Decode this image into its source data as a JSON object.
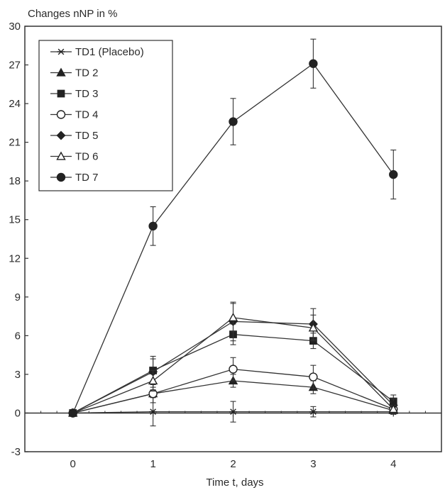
{
  "chart_data": {
    "type": "line",
    "ylabel": "Changes nNP in %",
    "xlabel": "Time t, days",
    "x": [
      0,
      1,
      2,
      3,
      4
    ],
    "xlim": [
      -0.6,
      4.6
    ],
    "ylim": [
      -3,
      30
    ],
    "xticks": [
      0,
      1,
      2,
      3,
      4
    ],
    "yticks": [
      -3,
      0,
      3,
      6,
      9,
      12,
      15,
      18,
      21,
      24,
      27,
      30
    ],
    "grid": false,
    "legend_position": "top-left",
    "series": [
      {
        "name": "TD1 (Placebo)",
        "marker": "asterisk",
        "values": [
          0,
          0.1,
          0.1,
          0.1,
          0.1
        ],
        "errors": [
          0,
          1.1,
          0.8,
          0.4,
          0.2
        ]
      },
      {
        "name": "TD 2",
        "marker": "triangle-filled",
        "values": [
          0,
          1.5,
          2.5,
          2.0,
          0.2
        ],
        "errors": [
          0,
          0.3,
          0.5,
          0.5,
          0.2
        ]
      },
      {
        "name": "TD 3",
        "marker": "square-filled",
        "values": [
          0,
          3.3,
          6.1,
          5.6,
          0.9
        ],
        "errors": [
          0,
          0.9,
          0.8,
          0.6,
          0.5
        ]
      },
      {
        "name": "TD 4",
        "marker": "circle-open",
        "values": [
          0,
          1.5,
          3.4,
          2.8,
          0.3
        ],
        "errors": [
          0,
          0.7,
          0.9,
          0.9,
          0.3
        ]
      },
      {
        "name": "TD 5",
        "marker": "diamond-filled",
        "values": [
          0,
          3.2,
          7.1,
          6.9,
          0.6
        ],
        "errors": [
          0,
          1.2,
          1.5,
          1.2,
          0.5
        ]
      },
      {
        "name": "TD 6",
        "marker": "triangle-open",
        "values": [
          0,
          2.5,
          7.4,
          6.6,
          0.3
        ],
        "errors": [
          0,
          0.8,
          1.1,
          1.0,
          0.3
        ]
      },
      {
        "name": "TD 7",
        "marker": "circle-filled",
        "values": [
          0,
          14.5,
          22.6,
          27.1,
          18.5
        ],
        "errors": [
          0,
          1.5,
          1.8,
          1.9,
          1.9
        ]
      }
    ]
  }
}
